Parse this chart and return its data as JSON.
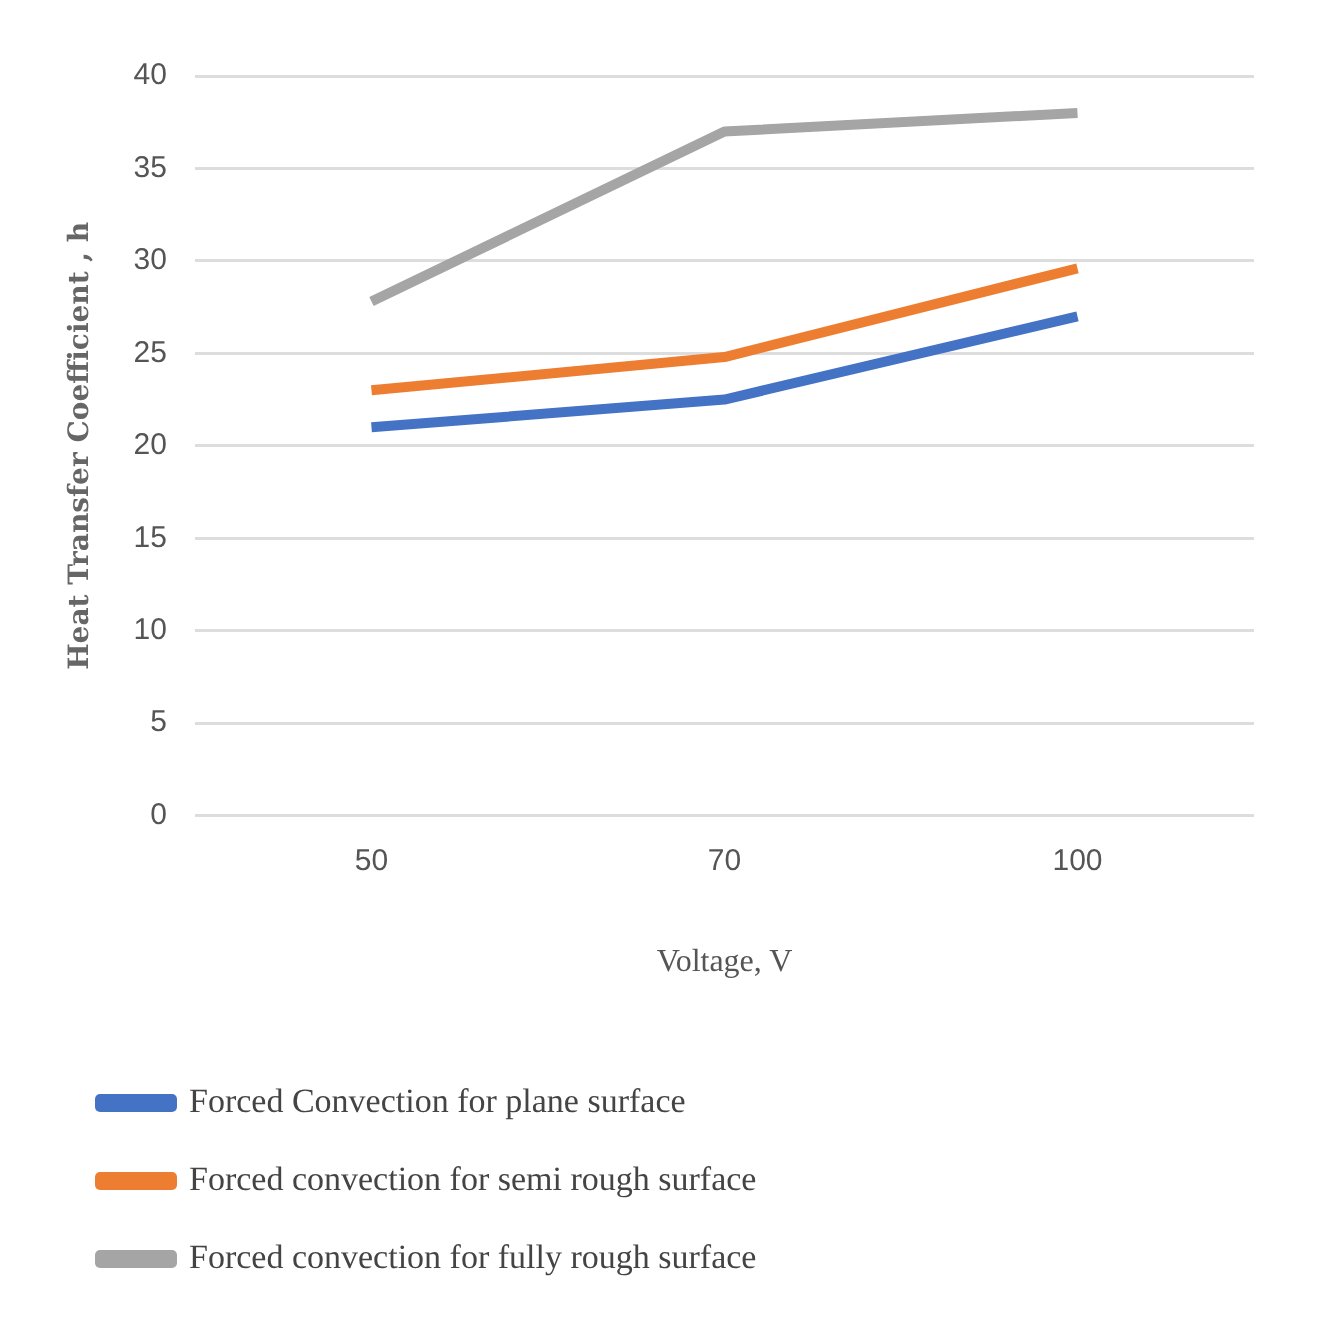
{
  "chart_data": {
    "type": "line",
    "xlabel": "Voltage, V",
    "ylabel": "Heat Transfer Coefficient , h",
    "categories": [
      "50",
      "70",
      "100"
    ],
    "series": [
      {
        "name": "Forced Convection for plane surface",
        "color": "#4472c4",
        "values": [
          21,
          22.5,
          27
        ]
      },
      {
        "name": "Forced convection for semi rough surface",
        "color": "#ed7d31",
        "values": [
          23,
          24.8,
          29.6
        ]
      },
      {
        "name": "Forced convection for fully rough surface",
        "color": "#a5a5a5",
        "values": [
          27.8,
          37,
          38
        ]
      }
    ],
    "ylim": [
      0,
      40
    ],
    "yticks": [
      0,
      5,
      10,
      15,
      20,
      25,
      30,
      35,
      40
    ],
    "grid": "y",
    "legend": "bottom",
    "marker": "none",
    "line_style": "solid"
  }
}
